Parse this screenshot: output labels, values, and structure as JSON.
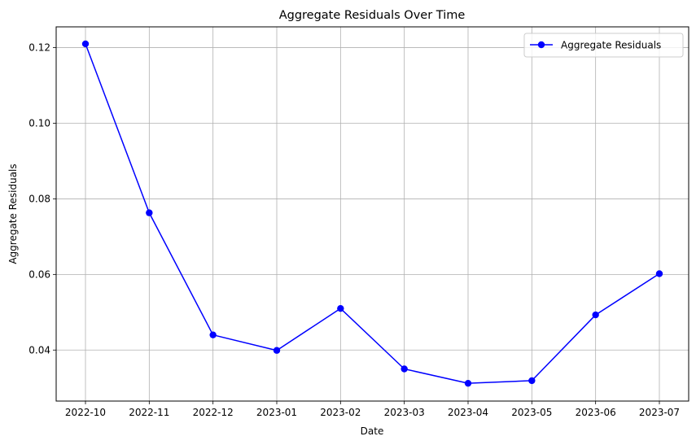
{
  "chart_data": {
    "type": "line",
    "title": "Aggregate Residuals Over Time",
    "xlabel": "Date",
    "ylabel": "Aggregate Residuals",
    "categories": [
      "2022-10",
      "2022-11",
      "2022-12",
      "2023-01",
      "2023-02",
      "2023-03",
      "2023-04",
      "2023-05",
      "2023-06",
      "2023-07"
    ],
    "series": [
      {
        "name": "Aggregate Residuals",
        "color": "#0000ff",
        "marker": "circle",
        "values": [
          0.121,
          0.0763,
          0.044,
          0.0399,
          0.051,
          0.035,
          0.0312,
          0.0319,
          0.0493,
          0.0602
        ]
      }
    ],
    "yticks": [
      0.04,
      0.06,
      0.08,
      0.1,
      0.12
    ],
    "ytick_labels": [
      "0.04",
      "0.06",
      "0.08",
      "0.10",
      "0.12"
    ],
    "ylim": [
      0.0265,
      0.1255
    ],
    "grid": true,
    "legend_position": "top-right"
  }
}
